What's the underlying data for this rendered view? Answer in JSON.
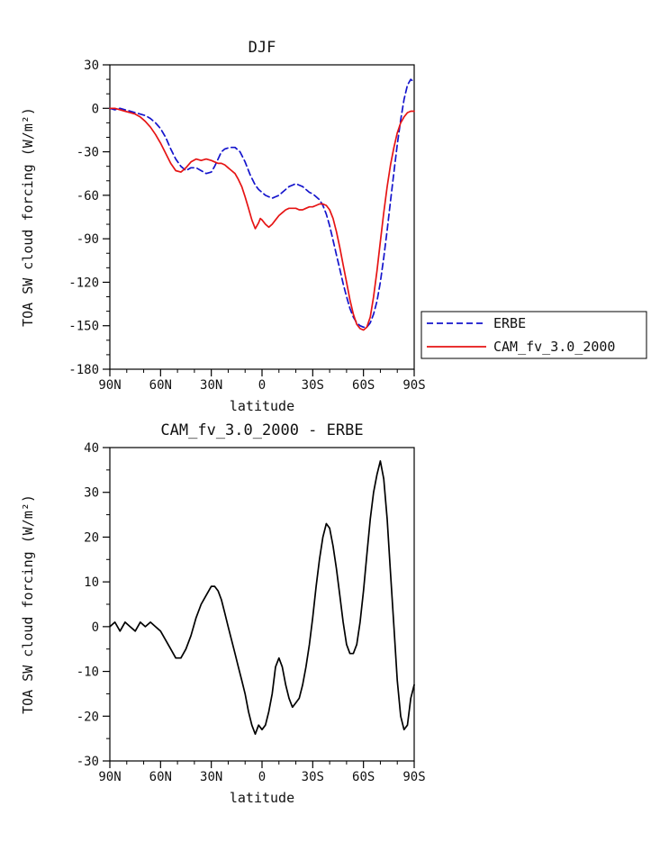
{
  "figure": {
    "background": "#ffffff",
    "season": "DJF",
    "variable": "TOA SW cloud forcing"
  },
  "chart_data": [
    {
      "type": "line",
      "title": "DJF",
      "xlabel": "latitude",
      "ylabel": "TOA SW cloud forcing (W/m²)",
      "xlim": [
        90,
        -90
      ],
      "ylim": [
        -180,
        30
      ],
      "grid": false,
      "legend_position": "outside-right-bottom",
      "xticks": {
        "values": [
          90,
          60,
          30,
          0,
          -30,
          -60,
          -90
        ],
        "labels": [
          "90N",
          "60N",
          "30N",
          "0",
          "30S",
          "60S",
          "90S"
        ],
        "minor_step": 10
      },
      "yticks": {
        "values": [
          30,
          0,
          -30,
          -60,
          -90,
          -120,
          -150,
          -180
        ],
        "labels": [
          "30",
          "0",
          "-30",
          "-60",
          "-90",
          "-120",
          "-150",
          "-180"
        ],
        "minor_step": 10
      },
      "legend": {
        "entries": [
          "ERBE",
          "CAM_fv_3.0_2000"
        ]
      },
      "series": [
        {
          "name": "ERBE",
          "color": "#1414cc",
          "dash": [
            7,
            4
          ],
          "width": 1.7,
          "points": [
            [
              90,
              0
            ],
            [
              87,
              -1
            ],
            [
              84,
              0
            ],
            [
              81,
              -1
            ],
            [
              78,
              -2
            ],
            [
              75,
              -3
            ],
            [
              72,
              -4
            ],
            [
              69,
              -5
            ],
            [
              66,
              -7
            ],
            [
              63,
              -10
            ],
            [
              60,
              -14
            ],
            [
              57,
              -20
            ],
            [
              54,
              -28
            ],
            [
              51,
              -35
            ],
            [
              48,
              -40
            ],
            [
              45,
              -43
            ],
            [
              42,
              -41
            ],
            [
              39,
              -41
            ],
            [
              36,
              -43
            ],
            [
              33,
              -45
            ],
            [
              30,
              -44
            ],
            [
              28,
              -40
            ],
            [
              26,
              -35
            ],
            [
              24,
              -30
            ],
            [
              22,
              -28
            ],
            [
              19,
              -27
            ],
            [
              16,
              -27
            ],
            [
              13,
              -30
            ],
            [
              10,
              -37
            ],
            [
              7,
              -46
            ],
            [
              4,
              -53
            ],
            [
              2,
              -56
            ],
            [
              0,
              -58
            ],
            [
              -2,
              -60
            ],
            [
              -4,
              -61
            ],
            [
              -6,
              -62
            ],
            [
              -8,
              -61
            ],
            [
              -10,
              -60
            ],
            [
              -12,
              -58
            ],
            [
              -14,
              -56
            ],
            [
              -16,
              -54
            ],
            [
              -18,
              -53
            ],
            [
              -20,
              -52
            ],
            [
              -22,
              -53
            ],
            [
              -24,
              -54
            ],
            [
              -26,
              -56
            ],
            [
              -28,
              -58
            ],
            [
              -30,
              -59
            ],
            [
              -32,
              -61
            ],
            [
              -34,
              -63
            ],
            [
              -36,
              -67
            ],
            [
              -38,
              -73
            ],
            [
              -40,
              -81
            ],
            [
              -42,
              -91
            ],
            [
              -44,
              -101
            ],
            [
              -46,
              -111
            ],
            [
              -48,
              -121
            ],
            [
              -50,
              -130
            ],
            [
              -52,
              -138
            ],
            [
              -54,
              -144
            ],
            [
              -56,
              -148
            ],
            [
              -58,
              -150
            ],
            [
              -60,
              -151
            ],
            [
              -62,
              -151
            ],
            [
              -64,
              -148
            ],
            [
              -66,
              -142
            ],
            [
              -68,
              -133
            ],
            [
              -70,
              -120
            ],
            [
              -72,
              -103
            ],
            [
              -74,
              -84
            ],
            [
              -76,
              -64
            ],
            [
              -78,
              -44
            ],
            [
              -80,
              -25
            ],
            [
              -82,
              -8
            ],
            [
              -84,
              6
            ],
            [
              -86,
              16
            ],
            [
              -88,
              20
            ],
            [
              -90,
              18
            ]
          ]
        },
        {
          "name": "CAM_fv_3.0_2000",
          "color": "#e61414",
          "dash": [],
          "width": 1.7,
          "points": [
            [
              90,
              0
            ],
            [
              87,
              0
            ],
            [
              84,
              -1
            ],
            [
              81,
              -2
            ],
            [
              78,
              -3
            ],
            [
              75,
              -4
            ],
            [
              72,
              -6
            ],
            [
              69,
              -9
            ],
            [
              66,
              -13
            ],
            [
              63,
              -18
            ],
            [
              60,
              -24
            ],
            [
              57,
              -31
            ],
            [
              54,
              -38
            ],
            [
              51,
              -43
            ],
            [
              48,
              -44
            ],
            [
              45,
              -41
            ],
            [
              42,
              -37
            ],
            [
              39,
              -35
            ],
            [
              36,
              -36
            ],
            [
              33,
              -35
            ],
            [
              30,
              -36
            ],
            [
              28,
              -37
            ],
            [
              26,
              -38
            ],
            [
              24,
              -38
            ],
            [
              22,
              -39
            ],
            [
              20,
              -41
            ],
            [
              18,
              -43
            ],
            [
              16,
              -45
            ],
            [
              14,
              -49
            ],
            [
              12,
              -54
            ],
            [
              10,
              -61
            ],
            [
              8,
              -69
            ],
            [
              6,
              -77
            ],
            [
              4,
              -83
            ],
            [
              2,
              -79
            ],
            [
              1,
              -76
            ],
            [
              0,
              -77
            ],
            [
              -2,
              -80
            ],
            [
              -4,
              -82
            ],
            [
              -6,
              -80
            ],
            [
              -8,
              -77
            ],
            [
              -10,
              -74
            ],
            [
              -12,
              -72
            ],
            [
              -14,
              -70
            ],
            [
              -16,
              -69
            ],
            [
              -18,
              -69
            ],
            [
              -20,
              -69
            ],
            [
              -22,
              -70
            ],
            [
              -24,
              -70
            ],
            [
              -26,
              -69
            ],
            [
              -28,
              -68
            ],
            [
              -30,
              -68
            ],
            [
              -32,
              -67
            ],
            [
              -34,
              -66
            ],
            [
              -36,
              -66
            ],
            [
              -38,
              -67
            ],
            [
              -40,
              -70
            ],
            [
              -42,
              -76
            ],
            [
              -44,
              -85
            ],
            [
              -46,
              -96
            ],
            [
              -48,
              -108
            ],
            [
              -50,
              -120
            ],
            [
              -52,
              -132
            ],
            [
              -54,
              -142
            ],
            [
              -56,
              -149
            ],
            [
              -58,
              -152
            ],
            [
              -60,
              -153
            ],
            [
              -62,
              -151
            ],
            [
              -64,
              -144
            ],
            [
              -66,
              -130
            ],
            [
              -68,
              -112
            ],
            [
              -70,
              -92
            ],
            [
              -72,
              -72
            ],
            [
              -74,
              -54
            ],
            [
              -76,
              -39
            ],
            [
              -78,
              -27
            ],
            [
              -80,
              -17
            ],
            [
              -82,
              -10
            ],
            [
              -84,
              -6
            ],
            [
              -86,
              -3
            ],
            [
              -88,
              -2
            ],
            [
              -90,
              -2
            ]
          ]
        }
      ]
    },
    {
      "type": "line",
      "title": "CAM_fv_3.0_2000 - ERBE",
      "xlabel": "latitude",
      "ylabel": "TOA SW cloud forcing (W/m²)",
      "xlim": [
        90,
        -90
      ],
      "ylim": [
        -30,
        40
      ],
      "grid": false,
      "xticks": {
        "values": [
          90,
          60,
          30,
          0,
          -30,
          -60,
          -90
        ],
        "labels": [
          "90N",
          "60N",
          "30N",
          "0",
          "30S",
          "60S",
          "90S"
        ],
        "minor_step": 10
      },
      "yticks": {
        "values": [
          40,
          30,
          20,
          10,
          0,
          -10,
          -20,
          -30
        ],
        "labels": [
          "40",
          "30",
          "20",
          "10",
          "0",
          "-10",
          "-20",
          "-30"
        ],
        "minor_step": 5
      },
      "series": [
        {
          "name": "CAM_fv_3.0_2000 - ERBE",
          "color": "#000000",
          "dash": [],
          "width": 1.7,
          "points": [
            [
              90,
              0
            ],
            [
              87,
              1
            ],
            [
              84,
              -1
            ],
            [
              81,
              1
            ],
            [
              78,
              0
            ],
            [
              75,
              -1
            ],
            [
              72,
              1
            ],
            [
              69,
              0
            ],
            [
              66,
              1
            ],
            [
              63,
              0
            ],
            [
              60,
              -1
            ],
            [
              57,
              -3
            ],
            [
              54,
              -5
            ],
            [
              51,
              -7
            ],
            [
              48,
              -7
            ],
            [
              45,
              -5
            ],
            [
              42,
              -2
            ],
            [
              39,
              2
            ],
            [
              36,
              5
            ],
            [
              33,
              7
            ],
            [
              30,
              9
            ],
            [
              28,
              9
            ],
            [
              26,
              8
            ],
            [
              24,
              6
            ],
            [
              22,
              3
            ],
            [
              20,
              0
            ],
            [
              18,
              -3
            ],
            [
              16,
              -6
            ],
            [
              14,
              -9
            ],
            [
              12,
              -12
            ],
            [
              10,
              -15
            ],
            [
              8,
              -19
            ],
            [
              6,
              -22
            ],
            [
              4,
              -24
            ],
            [
              2,
              -22
            ],
            [
              0,
              -23
            ],
            [
              -2,
              -22
            ],
            [
              -4,
              -19
            ],
            [
              -6,
              -15
            ],
            [
              -8,
              -9
            ],
            [
              -10,
              -7
            ],
            [
              -12,
              -9
            ],
            [
              -14,
              -13
            ],
            [
              -16,
              -16
            ],
            [
              -18,
              -18
            ],
            [
              -20,
              -17
            ],
            [
              -22,
              -16
            ],
            [
              -24,
              -13
            ],
            [
              -26,
              -9
            ],
            [
              -28,
              -4
            ],
            [
              -30,
              2
            ],
            [
              -32,
              9
            ],
            [
              -34,
              15
            ],
            [
              -36,
              20
            ],
            [
              -38,
              23
            ],
            [
              -40,
              22
            ],
            [
              -42,
              18
            ],
            [
              -44,
              13
            ],
            [
              -46,
              7
            ],
            [
              -48,
              1
            ],
            [
              -50,
              -4
            ],
            [
              -52,
              -6
            ],
            [
              -54,
              -6
            ],
            [
              -56,
              -4
            ],
            [
              -58,
              1
            ],
            [
              -60,
              8
            ],
            [
              -62,
              16
            ],
            [
              -64,
              24
            ],
            [
              -66,
              30
            ],
            [
              -68,
              34
            ],
            [
              -70,
              37
            ],
            [
              -72,
              33
            ],
            [
              -74,
              24
            ],
            [
              -76,
              12
            ],
            [
              -78,
              0
            ],
            [
              -80,
              -12
            ],
            [
              -82,
              -20
            ],
            [
              -84,
              -23
            ],
            [
              -86,
              -22
            ],
            [
              -88,
              -16
            ],
            [
              -90,
              -13
            ]
          ]
        }
      ]
    }
  ]
}
